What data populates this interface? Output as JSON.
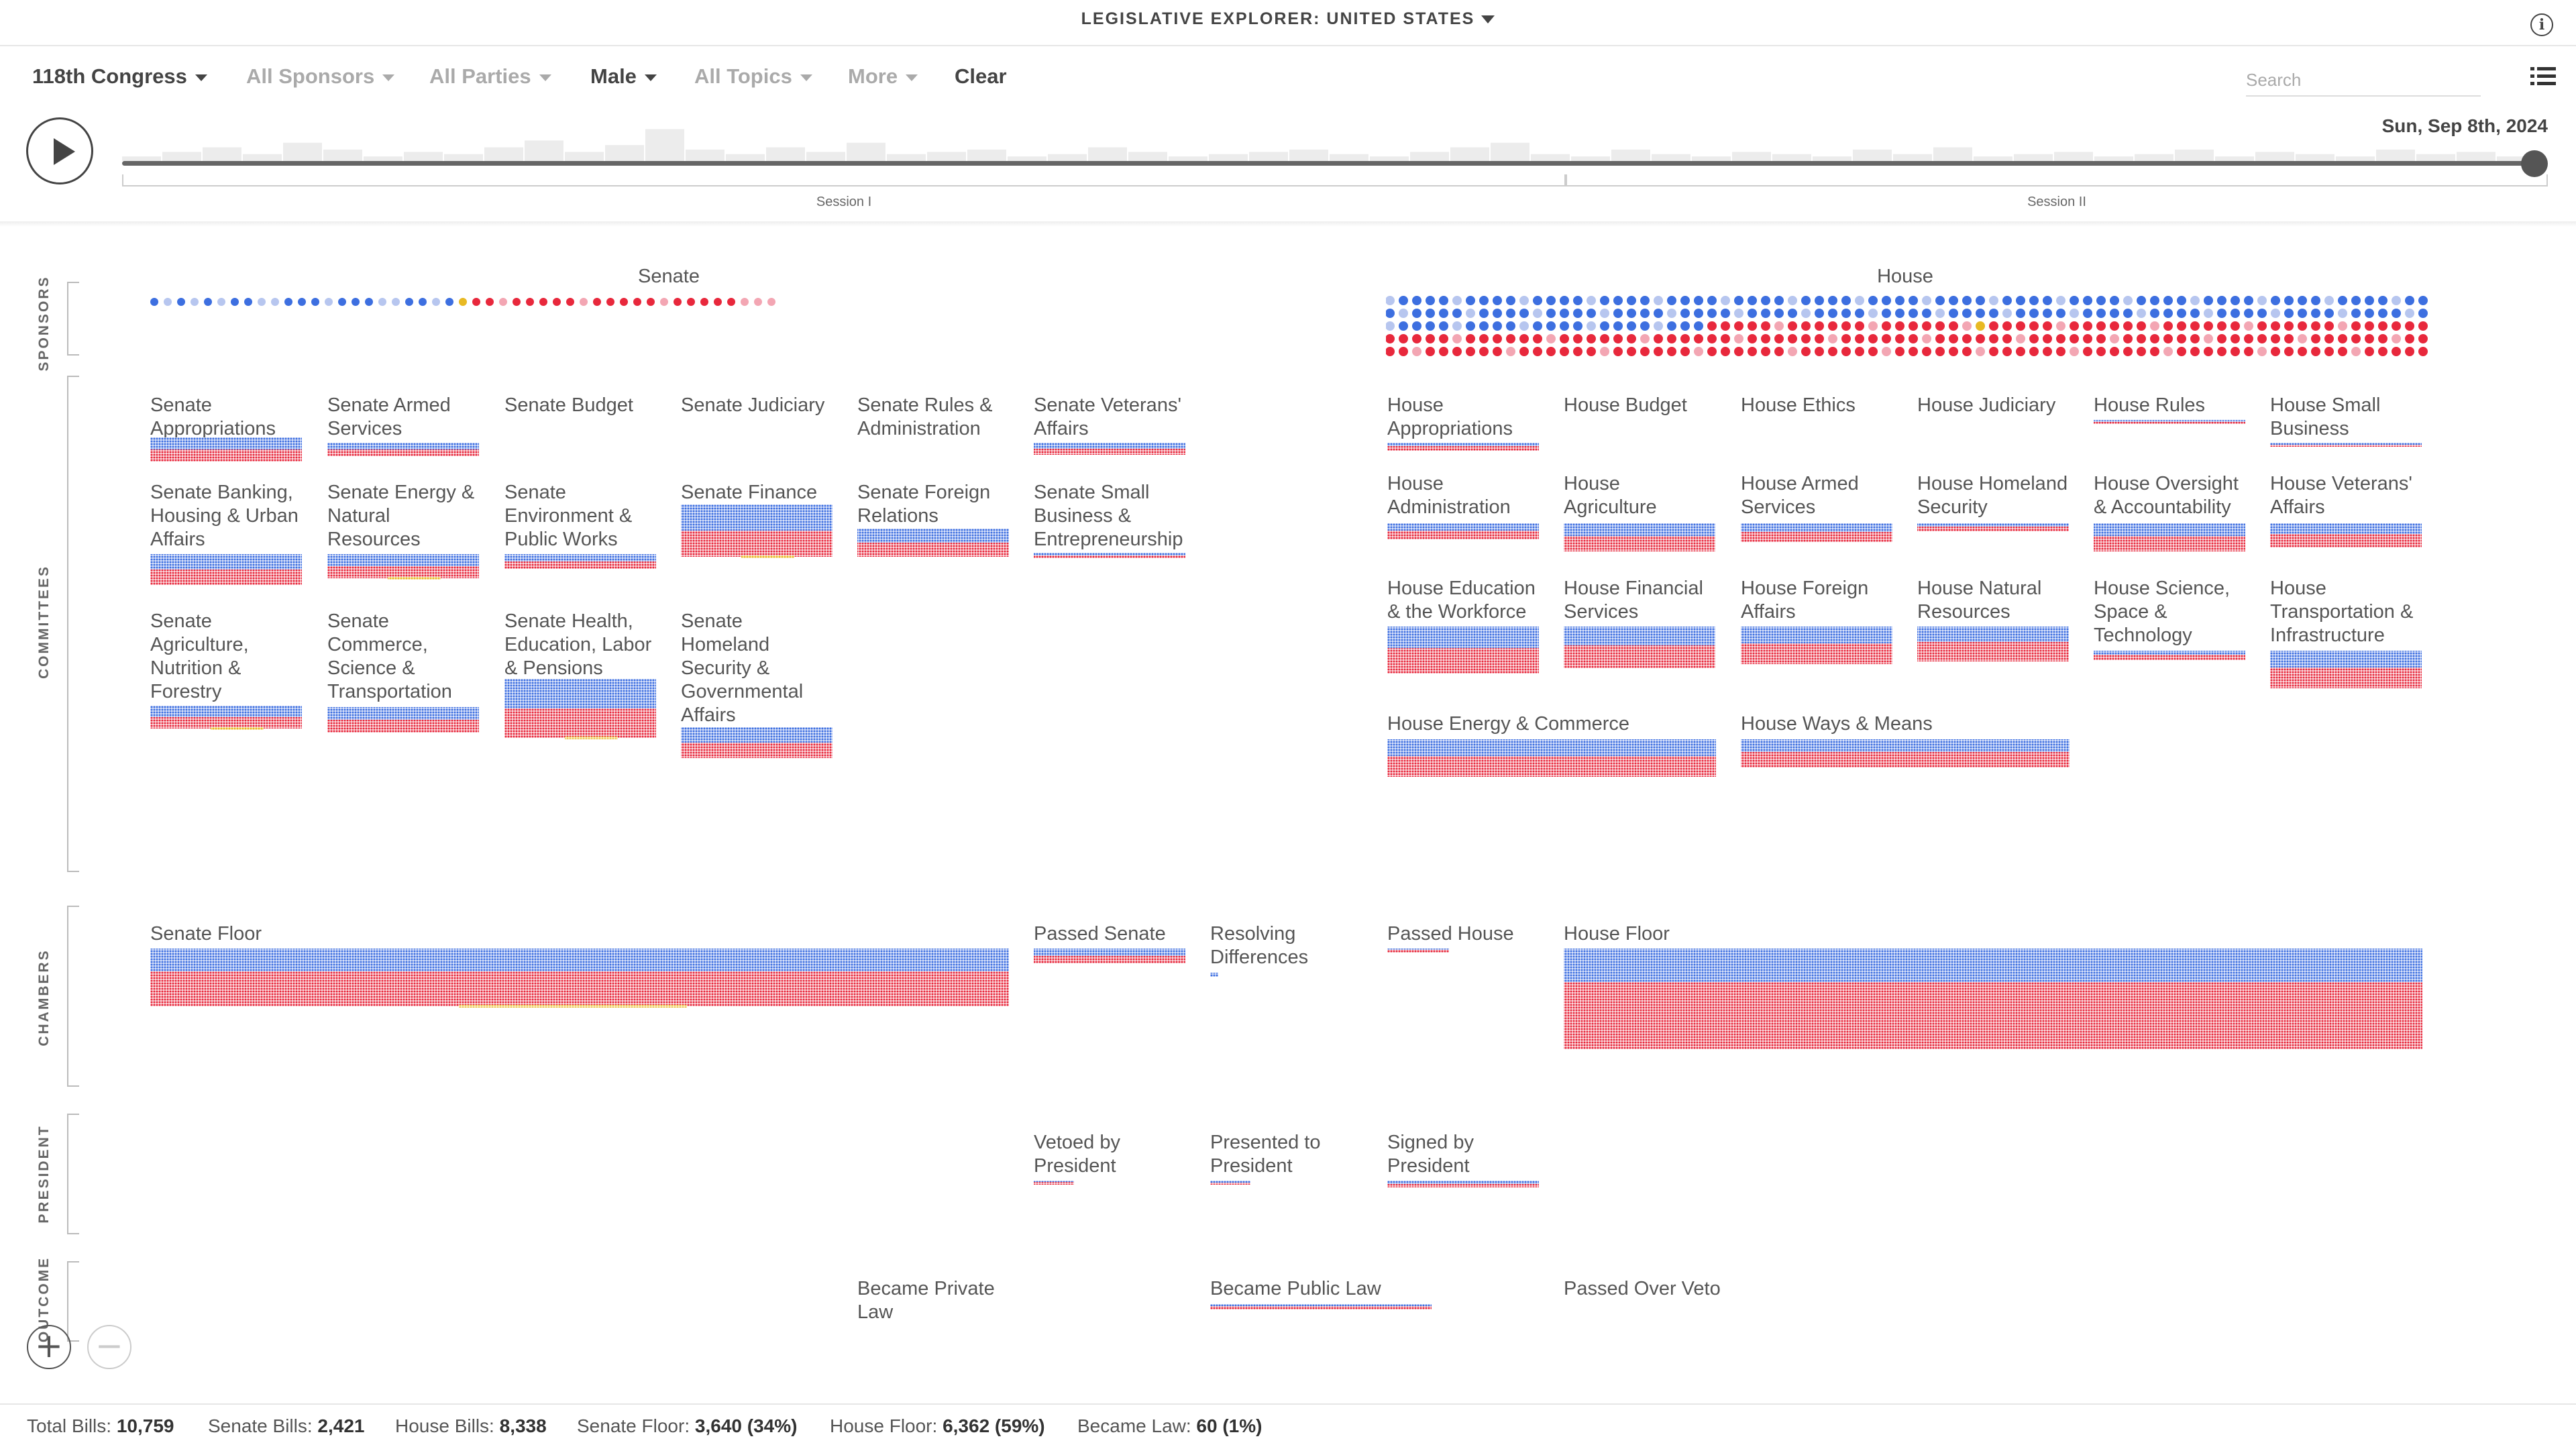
{
  "app": {
    "title": "LEGISLATIVE EXPLORER: UNITED STATES",
    "info_icon": "info-icon"
  },
  "filters": [
    {
      "label": "118th Congress",
      "active": true
    },
    {
      "label": "All Sponsors",
      "active": false
    },
    {
      "label": "All Parties",
      "active": false
    },
    {
      "label": "Male",
      "active": true
    },
    {
      "label": "All Topics",
      "active": false
    },
    {
      "label": "More",
      "active": false
    }
  ],
  "clear_label": "Clear",
  "search": {
    "placeholder": "Search"
  },
  "timeline": {
    "date": "Sun, Sep 8th, 2024",
    "progress": 1.0,
    "sessions": [
      "Session I",
      "Session II"
    ]
  },
  "colors": {
    "democrat": "#3d6fe0",
    "republican": "#e8283c",
    "independent": "#e8b923",
    "dem_light": "#b7c6ef",
    "rep_light": "#f3a6b3",
    "text": "#555555"
  },
  "sections": {
    "sponsors": "SPONSORS",
    "committees": "COMMITTEES",
    "chambers": "CHAMBERS",
    "president": "PRESIDENT",
    "outcome": "OUTCOME"
  },
  "chambers": {
    "senate": "Senate",
    "house": "House"
  },
  "senate_committees": [
    [
      "Senate",
      "Appropriations"
    ],
    [
      "Senate Armed",
      "Services"
    ],
    [
      "Senate Budget"
    ],
    [
      "Senate Judiciary"
    ],
    [
      "Senate Rules &",
      "Administration"
    ],
    [
      "Senate Veterans'",
      "Affairs"
    ],
    [
      "Senate Banking,",
      "Housing & Urban",
      "Affairs"
    ],
    [
      "Senate Energy &",
      "Natural",
      "Resources"
    ],
    [
      "Senate",
      "Environment &",
      "Public Works"
    ],
    [
      "Senate Finance"
    ],
    [
      "Senate Foreign",
      "Relations"
    ],
    [
      "Senate Small",
      "Business &",
      "Entrepreneurship"
    ],
    [
      "Senate",
      "Agriculture,",
      "Nutrition &",
      "Forestry"
    ],
    [
      "Senate",
      "Commerce,",
      "Science &",
      "Transportation"
    ],
    [
      "Senate Health,",
      "Education, Labor",
      "& Pensions"
    ],
    [
      "Senate",
      "Homeland",
      "Security &",
      "Governmental",
      "Affairs"
    ]
  ],
  "house_committees": [
    [
      "House",
      "Appropriations"
    ],
    [
      "House Budget"
    ],
    [
      "House Ethics"
    ],
    [
      "House Judiciary"
    ],
    [
      "House Rules"
    ],
    [
      "House Small",
      "Business"
    ],
    [
      "House",
      "Administration"
    ],
    [
      "House",
      "Agriculture"
    ],
    [
      "House Armed",
      "Services"
    ],
    [
      "House Homeland",
      "Security"
    ],
    [
      "House Oversight",
      "& Accountability"
    ],
    [
      "House Veterans'",
      "Affairs"
    ],
    [
      "House Education",
      "& the Workforce"
    ],
    [
      "House Financial",
      "Services"
    ],
    [
      "House Foreign",
      "Affairs"
    ],
    [
      "House Natural",
      "Resources"
    ],
    [
      "House Science,",
      "Space &",
      "Technology"
    ],
    [
      "House",
      "Transportation &",
      "Infrastructure"
    ],
    [
      "House Energy & Commerce"
    ],
    [
      "House Ways & Means"
    ]
  ],
  "chamber_stages": [
    [
      "Senate Floor"
    ],
    [
      "Passed Senate"
    ],
    [
      "Resolving",
      "Differences"
    ],
    [
      "Passed House"
    ],
    [
      "House Floor"
    ]
  ],
  "president_stages": [
    [
      "Vetoed by",
      "President"
    ],
    [
      "Presented to",
      "President"
    ],
    [
      "Signed by",
      "President"
    ]
  ],
  "outcome_stages": [
    [
      "Became Private Law"
    ],
    [
      "Became Public Law"
    ],
    [
      "Passed Over Veto"
    ]
  ],
  "stats": [
    {
      "label": "Total Bills:",
      "value": "10,759"
    },
    {
      "label": "Senate Bills:",
      "value": "2,421"
    },
    {
      "label": "House Bills:",
      "value": "8,338"
    },
    {
      "label": "Senate Floor:",
      "value": "3,640 (34%)"
    },
    {
      "label": "House Floor:",
      "value": "6,362 (59%)"
    },
    {
      "label": "Became Law:",
      "value": "60 (1%)"
    }
  ]
}
